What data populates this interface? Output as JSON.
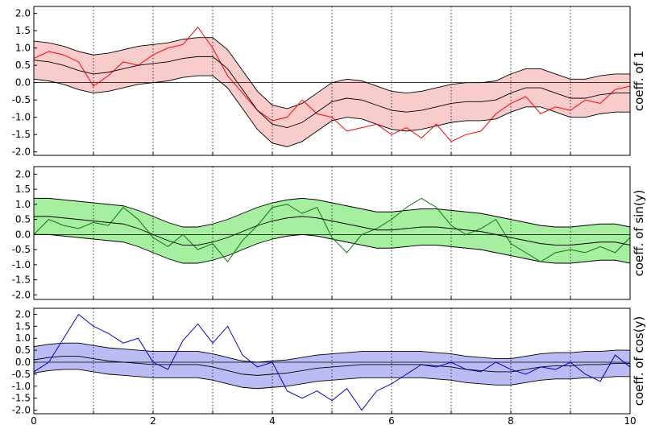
{
  "chart_data": [
    {
      "type": "band-line",
      "ylabel": "coeff. of 1",
      "color": "#ff0000",
      "band_color": "#f9cccc",
      "mean_color": "#000000",
      "xlim": [
        0,
        10
      ],
      "xticks": [
        0,
        1,
        2,
        3,
        4,
        5,
        6,
        7,
        8,
        9,
        10
      ],
      "xticklabels": false,
      "ylim": [
        -2.1,
        2.2
      ],
      "yticks": [
        {
          "value": -2,
          "label": "-2.0"
        },
        -1.5,
        {
          "value": -1,
          "label": "-1.0"
        },
        -0.5,
        {
          "value": 0,
          "label": "0.0"
        },
        0.5,
        {
          "value": 1,
          "label": "1.0"
        },
        1.5,
        {
          "value": 2,
          "label": "2.0"
        }
      ],
      "grid": true,
      "zero_line": true,
      "x": [
        0,
        0.25,
        0.5,
        0.75,
        1,
        1.25,
        1.5,
        1.75,
        2,
        2.25,
        2.5,
        2.75,
        3,
        3.25,
        3.5,
        3.75,
        4,
        4.25,
        4.5,
        4.75,
        5,
        5.25,
        5.5,
        5.75,
        6,
        6.25,
        6.5,
        6.75,
        7,
        7.25,
        7.5,
        7.75,
        8,
        8.25,
        8.5,
        8.75,
        9,
        9.25,
        9.5,
        9.75,
        10
      ],
      "mean": [
        0.65,
        0.6,
        0.5,
        0.35,
        0.25,
        0.3,
        0.4,
        0.5,
        0.55,
        0.6,
        0.7,
        0.75,
        0.75,
        0.4,
        -0.2,
        -0.8,
        -1.2,
        -1.3,
        -1.15,
        -0.85,
        -0.55,
        -0.45,
        -0.5,
        -0.65,
        -0.8,
        -0.85,
        -0.8,
        -0.7,
        -0.6,
        -0.55,
        -0.55,
        -0.5,
        -0.3,
        -0.15,
        -0.15,
        -0.3,
        -0.45,
        -0.45,
        -0.35,
        -0.3,
        -0.3
      ],
      "upper": [
        1.2,
        1.15,
        1.05,
        0.9,
        0.8,
        0.85,
        0.95,
        1.05,
        1.1,
        1.15,
        1.25,
        1.3,
        1.3,
        0.95,
        0.35,
        -0.25,
        -0.65,
        -0.75,
        -0.6,
        -0.3,
        0,
        0.1,
        0.05,
        -0.1,
        -0.25,
        -0.3,
        -0.25,
        -0.15,
        -0.05,
        0,
        0,
        0.05,
        0.25,
        0.4,
        0.4,
        0.25,
        0.1,
        0.1,
        0.2,
        0.25,
        0.25
      ],
      "lower": [
        0.1,
        0.05,
        -0.05,
        -0.2,
        -0.3,
        -0.25,
        -0.15,
        -0.05,
        0,
        0.05,
        0.15,
        0.2,
        0.2,
        -0.15,
        -0.75,
        -1.35,
        -1.75,
        -1.85,
        -1.7,
        -1.4,
        -1.1,
        -1,
        -1.05,
        -1.2,
        -1.35,
        -1.4,
        -1.35,
        -1.25,
        -1.15,
        -1.1,
        -1.1,
        -1.05,
        -0.85,
        -0.7,
        -0.7,
        -0.85,
        -1,
        -1,
        -0.9,
        -0.85,
        -0.85
      ],
      "sample": [
        0.7,
        0.9,
        0.8,
        0.6,
        -0.1,
        0.2,
        0.6,
        0.5,
        0.8,
        1.0,
        1.1,
        1.6,
        1.0,
        0.2,
        -0.3,
        -0.8,
        -1.1,
        -1.0,
        -0.5,
        -0.9,
        -1.0,
        -1.4,
        -1.3,
        -1.2,
        -1.5,
        -1.3,
        -1.6,
        -1.2,
        -1.7,
        -1.5,
        -1.4,
        -0.9,
        -0.6,
        -0.4,
        -0.9,
        -0.7,
        -0.8,
        -0.5,
        -0.6,
        -0.2,
        -0.1
      ]
    },
    {
      "type": "band-line",
      "ylabel": "coeff. of sin(y)",
      "color": "#117711",
      "band_color": "#a6eea0",
      "mean_color": "#000000",
      "xlim": [
        0,
        10
      ],
      "xticks": [
        0,
        1,
        2,
        3,
        4,
        5,
        6,
        7,
        8,
        9,
        10
      ],
      "xticklabels": false,
      "ylim": [
        -2.15,
        2.25
      ],
      "yticks": [
        {
          "value": -2,
          "label": "-2.0"
        },
        -1.5,
        {
          "value": -1,
          "label": "-1.0"
        },
        -0.5,
        {
          "value": 0,
          "label": "0.0"
        },
        0.5,
        {
          "value": 1,
          "label": "1.0"
        },
        1.5,
        {
          "value": 2,
          "label": "2.0"
        }
      ],
      "grid": true,
      "zero_line": true,
      "x": [
        0,
        0.25,
        0.5,
        0.75,
        1,
        1.25,
        1.5,
        1.75,
        2,
        2.25,
        2.5,
        2.75,
        3,
        3.25,
        3.5,
        3.75,
        4,
        4.25,
        4.5,
        4.75,
        5,
        5.25,
        5.5,
        5.75,
        6,
        6.25,
        6.5,
        6.75,
        7,
        7.25,
        7.5,
        7.75,
        8,
        8.25,
        8.5,
        8.75,
        9,
        9.25,
        9.5,
        9.75,
        10
      ],
      "mean": [
        0.6,
        0.6,
        0.55,
        0.5,
        0.45,
        0.4,
        0.35,
        0.2,
        0.0,
        -0.2,
        -0.35,
        -0.35,
        -0.25,
        -0.1,
        0.1,
        0.3,
        0.45,
        0.55,
        0.6,
        0.55,
        0.45,
        0.35,
        0.25,
        0.15,
        0.15,
        0.2,
        0.25,
        0.25,
        0.2,
        0.15,
        0.1,
        0.0,
        -0.1,
        -0.2,
        -0.3,
        -0.35,
        -0.35,
        -0.3,
        -0.25,
        -0.25,
        -0.35
      ],
      "upper": [
        1.2,
        1.2,
        1.15,
        1.1,
        1.05,
        1.0,
        0.95,
        0.8,
        0.6,
        0.4,
        0.25,
        0.25,
        0.35,
        0.5,
        0.7,
        0.9,
        1.05,
        1.15,
        1.2,
        1.15,
        1.05,
        0.95,
        0.85,
        0.75,
        0.75,
        0.8,
        0.85,
        0.85,
        0.8,
        0.75,
        0.7,
        0.6,
        0.5,
        0.4,
        0.3,
        0.25,
        0.25,
        0.3,
        0.35,
        0.35,
        0.25
      ],
      "lower": [
        0,
        0,
        -0.05,
        -0.1,
        -0.15,
        -0.2,
        -0.25,
        -0.4,
        -0.6,
        -0.8,
        -0.95,
        -0.95,
        -0.85,
        -0.7,
        -0.5,
        -0.3,
        -0.15,
        -0.05,
        0,
        -0.05,
        -0.15,
        -0.25,
        -0.35,
        -0.45,
        -0.45,
        -0.4,
        -0.35,
        -0.35,
        -0.4,
        -0.45,
        -0.5,
        -0.6,
        -0.7,
        -0.8,
        -0.9,
        -0.95,
        -0.95,
        -0.9,
        -0.85,
        -0.85,
        -0.95
      ],
      "sample": [
        0.0,
        0.5,
        0.3,
        0.2,
        0.4,
        0.3,
        0.9,
        0.5,
        -0.1,
        -0.4,
        0.0,
        -0.5,
        -0.3,
        -0.9,
        -0.2,
        0.3,
        0.9,
        1.0,
        0.7,
        0.9,
        -0.1,
        -0.6,
        0.0,
        0.2,
        0.5,
        0.9,
        1.2,
        0.9,
        0.3,
        0.0,
        0.2,
        0.5,
        -0.3,
        -0.6,
        -0.9,
        -0.6,
        -0.5,
        -0.6,
        -0.4,
        -0.6,
        -0.1
      ]
    },
    {
      "type": "band-line",
      "ylabel": "coeff. of cos(y)",
      "color": "#0000dd",
      "band_color": "#bcbcf4",
      "mean_color": "#000000",
      "xlim": [
        0,
        10
      ],
      "xticks": [
        0,
        {
          "value": 1,
          "label": null
        },
        2,
        {
          "value": 3,
          "label": null
        },
        4,
        {
          "value": 5,
          "label": null
        },
        6,
        {
          "value": 7,
          "label": null
        },
        8,
        {
          "value": 9,
          "label": null
        },
        10
      ],
      "xticklabels": true,
      "ylim": [
        -2.15,
        2.25
      ],
      "yticks": [
        {
          "value": -2,
          "label": "-2.0"
        },
        -1.5,
        {
          "value": -1,
          "label": "-1.0"
        },
        -0.5,
        {
          "value": 0,
          "label": "0.0"
        },
        0.5,
        {
          "value": 1,
          "label": "1.0"
        },
        1.5,
        {
          "value": 2,
          "label": "2.0"
        }
      ],
      "grid": true,
      "zero_line": true,
      "x": [
        0,
        0.25,
        0.5,
        0.75,
        1,
        1.25,
        1.5,
        1.75,
        2,
        2.25,
        2.5,
        2.75,
        3,
        3.25,
        3.5,
        3.75,
        4,
        4.25,
        4.5,
        4.75,
        5,
        5.25,
        5.5,
        5.75,
        6,
        6.25,
        6.5,
        6.75,
        7,
        7.25,
        7.5,
        7.75,
        8,
        8.25,
        8.5,
        8.75,
        9,
        9.25,
        9.5,
        9.75,
        10
      ],
      "mean": [
        0.1,
        0.2,
        0.25,
        0.25,
        0.15,
        0.05,
        0.0,
        -0.05,
        -0.1,
        -0.1,
        -0.1,
        -0.1,
        -0.2,
        -0.35,
        -0.5,
        -0.55,
        -0.5,
        -0.45,
        -0.35,
        -0.25,
        -0.2,
        -0.15,
        -0.1,
        -0.1,
        -0.1,
        -0.1,
        -0.1,
        -0.15,
        -0.2,
        -0.3,
        -0.35,
        -0.4,
        -0.4,
        -0.3,
        -0.2,
        -0.15,
        -0.15,
        -0.1,
        -0.1,
        -0.05,
        -0.05
      ],
      "upper": [
        0.65,
        0.75,
        0.8,
        0.8,
        0.7,
        0.6,
        0.55,
        0.5,
        0.45,
        0.45,
        0.45,
        0.45,
        0.35,
        0.2,
        0.05,
        0,
        0.05,
        0.1,
        0.2,
        0.3,
        0.35,
        0.4,
        0.45,
        0.45,
        0.45,
        0.45,
        0.45,
        0.4,
        0.35,
        0.25,
        0.2,
        0.15,
        0.15,
        0.25,
        0.35,
        0.4,
        0.4,
        0.45,
        0.45,
        0.5,
        0.5
      ],
      "lower": [
        -0.45,
        -0.35,
        -0.3,
        -0.3,
        -0.4,
        -0.5,
        -0.55,
        -0.6,
        -0.65,
        -0.65,
        -0.65,
        -0.65,
        -0.75,
        -0.9,
        -1.05,
        -1.1,
        -1.05,
        -1,
        -0.9,
        -0.8,
        -0.75,
        -0.7,
        -0.65,
        -0.65,
        -0.65,
        -0.65,
        -0.65,
        -0.7,
        -0.75,
        -0.85,
        -0.9,
        -0.95,
        -0.95,
        -0.85,
        -0.75,
        -0.7,
        -0.7,
        -0.65,
        -0.65,
        -0.6,
        -0.6
      ],
      "sample": [
        -0.4,
        0.0,
        1.0,
        2.0,
        1.5,
        1.2,
        0.8,
        1.0,
        0.0,
        -0.3,
        0.9,
        1.6,
        0.8,
        1.5,
        0.3,
        -0.2,
        0.0,
        -1.2,
        -1.5,
        -1.2,
        -1.6,
        -1.1,
        -2.0,
        -1.2,
        -0.9,
        -0.5,
        -0.1,
        -0.2,
        0.0,
        -0.3,
        -0.4,
        0.0,
        -0.3,
        -0.5,
        -0.2,
        -0.3,
        0.0,
        -0.5,
        -0.8,
        0.3,
        -0.2
      ]
    }
  ]
}
